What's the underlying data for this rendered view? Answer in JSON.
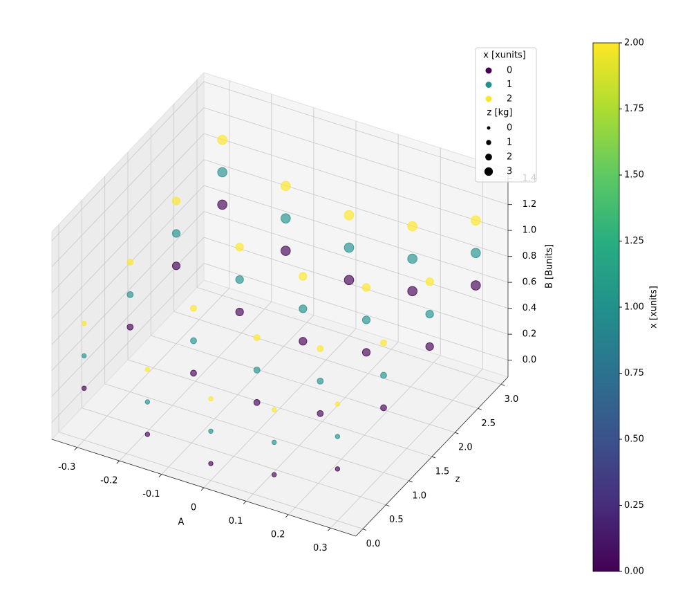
{
  "chart_data": {
    "type": "scatter3d",
    "xlabel": "A",
    "ylabel": "z",
    "zlabel": "B [Bunits]",
    "xlim": [
      -0.36,
      0.36
    ],
    "ylim": [
      -0.15,
      3.15
    ],
    "zlim": [
      -0.13,
      1.47
    ],
    "xticks": [
      -0.3,
      -0.2,
      -0.1,
      0.0,
      0.1,
      0.2,
      0.3
    ],
    "yticks": [
      {
        "value": 0,
        "label": "0.0"
      },
      {
        "value": 0.5,
        "label": "0.5"
      },
      {
        "value": 1,
        "label": "1.0"
      },
      {
        "value": 1.5,
        "label": "1.5"
      },
      {
        "value": 2,
        "label": "2.0"
      },
      {
        "value": 2.5,
        "label": "2.5"
      },
      {
        "value": 3,
        "label": "3.0"
      }
    ],
    "zticks": [
      {
        "value": 0,
        "label": "0.0"
      },
      {
        "value": 0.2,
        "label": "0.2"
      },
      {
        "value": 0.4,
        "label": "0.4"
      },
      {
        "value": 0.6,
        "label": "0.6"
      },
      {
        "value": 0.8,
        "label": "0.8"
      },
      {
        "value": 1,
        "label": "1.0"
      },
      {
        "value": 1.2,
        "label": "1.2"
      },
      {
        "value": 1.4,
        "label": "1.4"
      }
    ],
    "grid": true,
    "legend_title": "x [xunits]",
    "legend_position": "upper right",
    "series": [
      {
        "name": "0",
        "color": "#440154",
        "x": [
          -0.3,
          -0.15,
          0,
          0.15,
          0.3,
          -0.3,
          -0.15,
          0,
          0.15,
          0.3,
          -0.3,
          -0.15,
          0,
          0.15,
          0.3,
          -0.3,
          -0.15,
          0,
          0.15,
          0.3
        ],
        "y": [
          0,
          0,
          0,
          0,
          0,
          1,
          1,
          1,
          1,
          1,
          2,
          2,
          2,
          2,
          2,
          3,
          3,
          3,
          3,
          3
        ],
        "z": [
          0.27,
          0.07,
          0,
          0.07,
          0.27,
          0.37,
          0.17,
          0.1,
          0.17,
          0.37,
          0.47,
          0.27,
          0.2,
          0.27,
          0.47,
          0.57,
          0.37,
          0.3,
          0.37,
          0.57
        ]
      },
      {
        "name": "1",
        "color": "#21918c",
        "x": [
          -0.3,
          -0.15,
          0,
          0.15,
          0.3,
          -0.3,
          -0.15,
          0,
          0.15,
          0.3,
          -0.3,
          -0.15,
          0,
          0.15,
          0.3,
          -0.3,
          -0.15,
          0,
          0.15,
          0.3
        ],
        "y": [
          0,
          0,
          0,
          0,
          0,
          1,
          1,
          1,
          1,
          1,
          2,
          2,
          2,
          2,
          2,
          3,
          3,
          3,
          3,
          3
        ],
        "z": [
          0.52,
          0.32,
          0.25,
          0.32,
          0.52,
          0.62,
          0.42,
          0.35,
          0.42,
          0.62,
          0.72,
          0.52,
          0.45,
          0.52,
          0.72,
          0.82,
          0.62,
          0.55,
          0.62,
          0.82
        ]
      },
      {
        "name": "2",
        "color": "#fde725",
        "x": [
          -0.3,
          -0.15,
          0,
          0.15,
          0.3,
          -0.3,
          -0.15,
          0,
          0.15,
          0.3,
          -0.3,
          -0.15,
          0,
          0.15,
          0.3,
          -0.3,
          -0.15,
          0,
          0.15,
          0.3
        ],
        "y": [
          0,
          0,
          0,
          0,
          0,
          1,
          1,
          1,
          1,
          1,
          2,
          2,
          2,
          2,
          2,
          3,
          3,
          3,
          3,
          3
        ],
        "z": [
          0.77,
          0.57,
          0.5,
          0.57,
          0.77,
          0.87,
          0.67,
          0.6,
          0.67,
          0.87,
          0.97,
          0.77,
          0.7,
          0.77,
          0.97,
          1.07,
          0.87,
          0.8,
          0.87,
          1.07
        ]
      }
    ],
    "size_legend": {
      "title": "z [kg]",
      "values": [
        0,
        1,
        2,
        3
      ]
    },
    "colorbar": {
      "label": "x [xunits]",
      "colormap": "viridis",
      "lim": [
        0,
        2
      ],
      "ticks": [
        {
          "value": 0,
          "label": "0.00"
        },
        {
          "value": 0.25,
          "label": "0.25"
        },
        {
          "value": 0.5,
          "label": "0.50"
        },
        {
          "value": 0.75,
          "label": "0.75"
        },
        {
          "value": 1,
          "label": "1.00"
        },
        {
          "value": 1.25,
          "label": "1.25"
        },
        {
          "value": 1.5,
          "label": "1.50"
        },
        {
          "value": 1.75,
          "label": "1.75"
        },
        {
          "value": 2,
          "label": "2.00"
        }
      ]
    }
  }
}
